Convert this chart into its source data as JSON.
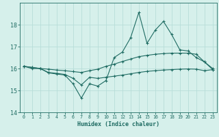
{
  "xlabel": "Humidex (Indice chaleur)",
  "background_color": "#d6f0eb",
  "grid_color": "#b8ddd8",
  "line_color": "#1e6b62",
  "xlim": [
    -0.5,
    23.5
  ],
  "ylim": [
    14.0,
    19.0
  ],
  "xticks": [
    0,
    1,
    2,
    3,
    4,
    5,
    6,
    7,
    8,
    9,
    10,
    11,
    12,
    13,
    14,
    15,
    16,
    17,
    18,
    19,
    20,
    21,
    22,
    23
  ],
  "yticks": [
    14,
    15,
    16,
    17,
    18
  ],
  "series1_x": [
    0,
    1,
    2,
    3,
    4,
    5,
    6,
    7,
    8,
    9,
    10,
    11,
    12,
    13,
    14,
    15,
    16,
    17,
    18,
    19,
    20,
    21,
    22,
    23
  ],
  "series1_y": [
    16.1,
    16.0,
    16.0,
    15.8,
    15.75,
    15.7,
    15.3,
    14.65,
    15.3,
    15.2,
    15.45,
    16.5,
    16.75,
    17.4,
    18.55,
    17.15,
    17.75,
    18.15,
    17.55,
    16.85,
    16.8,
    16.5,
    16.3,
    15.95
  ],
  "series2_x": [
    0,
    1,
    2,
    3,
    4,
    5,
    6,
    7,
    8,
    9,
    10,
    11,
    12,
    13,
    14,
    15,
    16,
    17,
    18,
    19,
    20,
    21,
    22,
    23
  ],
  "series2_y": [
    16.1,
    16.05,
    16.0,
    15.97,
    15.93,
    15.9,
    15.86,
    15.82,
    15.9,
    15.97,
    16.1,
    16.2,
    16.32,
    16.43,
    16.54,
    16.6,
    16.65,
    16.68,
    16.7,
    16.7,
    16.7,
    16.65,
    16.3,
    16.0
  ],
  "series3_x": [
    0,
    1,
    2,
    3,
    4,
    5,
    6,
    7,
    8,
    9,
    10,
    11,
    12,
    13,
    14,
    15,
    16,
    17,
    18,
    19,
    20,
    21,
    22,
    23
  ],
  "series3_y": [
    16.1,
    16.05,
    16.0,
    15.82,
    15.78,
    15.73,
    15.55,
    15.25,
    15.6,
    15.55,
    15.6,
    15.65,
    15.7,
    15.76,
    15.82,
    15.87,
    15.9,
    15.93,
    15.95,
    15.97,
    15.98,
    15.97,
    15.9,
    15.95
  ]
}
